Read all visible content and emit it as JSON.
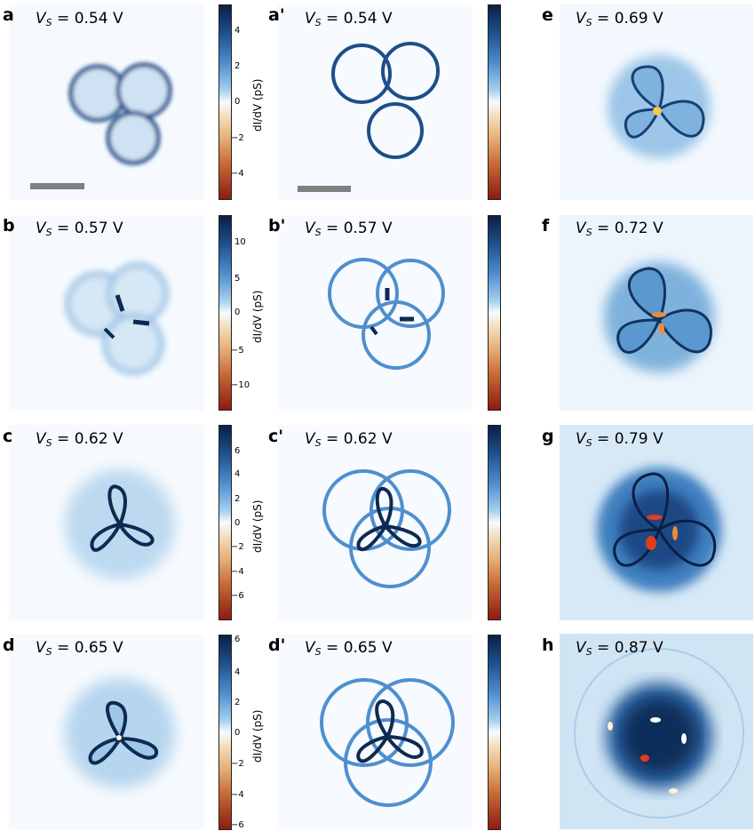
{
  "panels": {
    "a": {
      "label": "a",
      "voltage": "0.54 V"
    },
    "ap": {
      "label": "a'",
      "voltage": "0.54 V"
    },
    "e": {
      "label": "e",
      "voltage": "0.69 V"
    },
    "b": {
      "label": "b",
      "voltage": "0.57 V"
    },
    "bp": {
      "label": "b'",
      "voltage": "0.57 V"
    },
    "f": {
      "label": "f",
      "voltage": "0.72 V"
    },
    "c": {
      "label": "c",
      "voltage": "0.62 V"
    },
    "cp": {
      "label": "c'",
      "voltage": "0.62 V"
    },
    "g": {
      "label": "g",
      "voltage": "0.79 V"
    },
    "d": {
      "label": "d",
      "voltage": "0.65 V"
    },
    "dp": {
      "label": "d'",
      "voltage": "0.65 V"
    },
    "h": {
      "label": "h",
      "voltage": "0.87 V"
    }
  },
  "voltage_symbol": "V",
  "voltage_subscript": "S",
  "colorbars": {
    "label": "dI/dV (pS)",
    "row1_ticks": [
      "4",
      "2",
      "0",
      "−2",
      "−4"
    ],
    "row2_ticks": [
      "10",
      "5",
      "0",
      "−5",
      "−10"
    ],
    "row3_ticks": [
      "6",
      "4",
      "2",
      "0",
      "−2",
      "−4",
      "−6"
    ],
    "row4_ticks": [
      "6",
      "4",
      "2",
      "0",
      "−2",
      "−4",
      "−6"
    ]
  },
  "colors": {
    "dark_blue": "#0b1f46",
    "mid_blue": "#4f8fcf",
    "light_blue": "#cfe4f5",
    "red": "#d7301f"
  }
}
